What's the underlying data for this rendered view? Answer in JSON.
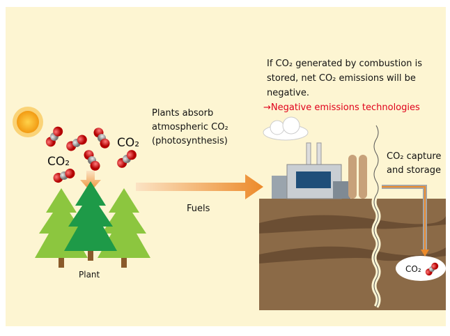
{
  "molecule_labels": [
    "CO₂",
    "CO₂"
  ],
  "absorb_text": [
    "Plants absorb",
    "atmospheric CO₂",
    "(photosynthesis)"
  ],
  "plant_label": "Plant",
  "fuels_label": "Fuels",
  "note": [
    "If CO₂ generated by combustion is",
    "stored, net CO₂ emissions will be",
    "negative."
  ],
  "note_highlight": "→Negative emissions technologies",
  "storage_label": [
    "CO₂ capture",
    "and storage"
  ],
  "stored_label": "CO₂"
}
